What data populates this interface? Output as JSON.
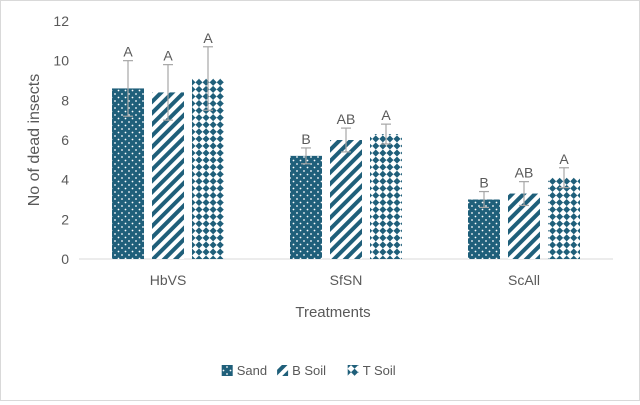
{
  "chart_data": {
    "type": "bar",
    "categories": [
      "HbVS",
      "SfSN",
      "ScAll"
    ],
    "series": [
      {
        "name": "Sand",
        "values": [
          8.6,
          5.2,
          3.0
        ],
        "errors": [
          1.4,
          0.4,
          0.4
        ],
        "letters": [
          "A",
          "B",
          "B"
        ],
        "pattern": "dots"
      },
      {
        "name": "B Soil",
        "values": [
          8.4,
          6.0,
          3.3
        ],
        "errors": [
          1.4,
          0.6,
          0.6
        ],
        "letters": [
          "A",
          "AB",
          "AB"
        ],
        "pattern": "diagonal"
      },
      {
        "name": "T Soil",
        "values": [
          9.1,
          6.3,
          4.1
        ],
        "errors": [
          1.6,
          0.5,
          0.5
        ],
        "letters": [
          "A",
          "A",
          "A"
        ],
        "pattern": "checker"
      }
    ],
    "ylabel": "No of dead insects",
    "xlabel": "Treatments",
    "ylim": [
      0,
      12
    ],
    "yticks": [
      0,
      2,
      4,
      6,
      8,
      10,
      12
    ],
    "grid": false,
    "legend_position": "bottom",
    "colors": {
      "bar": "#1f5f7a",
      "error": "#a6a6a6",
      "axis": "#d9d9d9",
      "text": "#595959"
    }
  }
}
